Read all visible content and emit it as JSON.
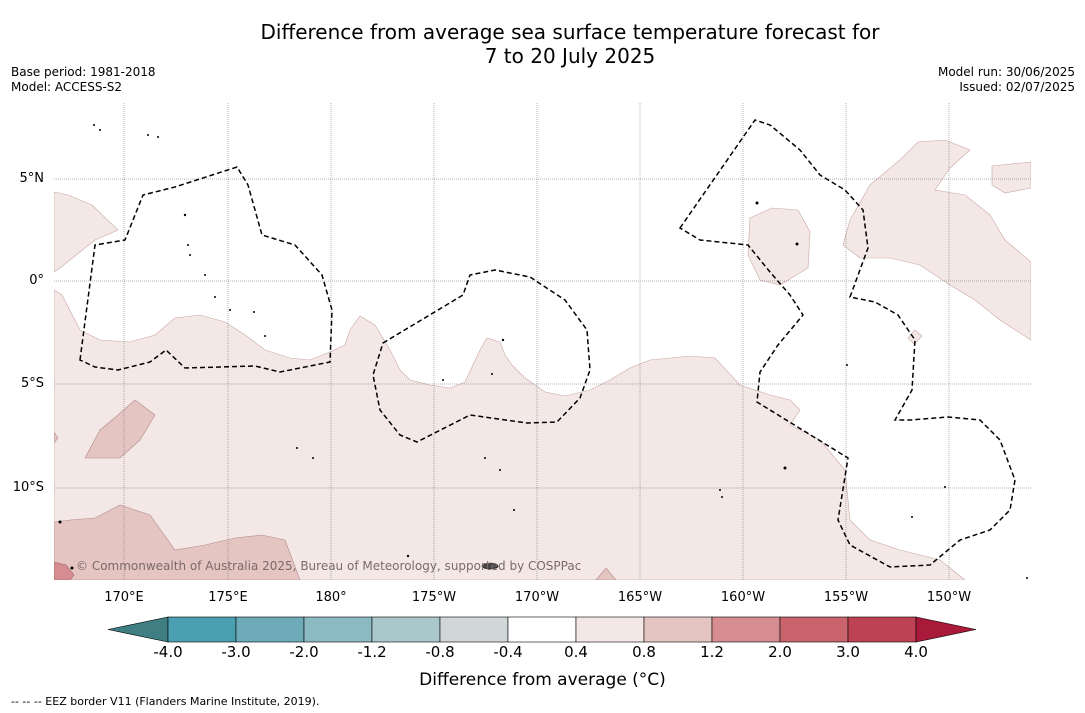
{
  "title": {
    "line1": "Difference from average sea surface temperature forecast for",
    "line2": "7 to 20 July 2025"
  },
  "meta": {
    "base_period": "Base period: 1981-2018",
    "model": "Model: ACCESS-S2",
    "model_run": "Model run: 30/06/2025",
    "issued": "Issued: 02/07/2025"
  },
  "map": {
    "lat_labels": [
      "5°N",
      "0°",
      "5°S",
      "10°S"
    ],
    "lon_labels": [
      "170°E",
      "175°E",
      "180°",
      "175°W",
      "170°W",
      "165°W",
      "160°W",
      "155°W",
      "150°W"
    ],
    "copyright": "© Commonwealth of Australia 2025, Bureau of Meteorology, supported by COSPPac",
    "colors": {
      "anom_0p4_0p8": "#f4e8e7",
      "anom_0p8_1p2": "#e5c5c2",
      "anom_1p2_2p0": "#d68d92",
      "eez_border": "#000000",
      "grid": "#666666"
    }
  },
  "colorbar": {
    "tick_labels": [
      "-4.0",
      "-3.0",
      "-2.0",
      "-1.2",
      "-0.8",
      "-0.4",
      "0.4",
      "0.8",
      "1.2",
      "2.0",
      "3.0",
      "4.0"
    ],
    "colors": [
      "#4a9fb0",
      "#6eabb9",
      "#8cbac3",
      "#aac8cc",
      "#d1d7d9",
      "#ffffff",
      "#f4e8e7",
      "#e5c5c2",
      "#d68d92",
      "#c9646d",
      "#bd4354"
    ],
    "under_color": "#3f7f83",
    "over_color": "#a91a3a",
    "label": "Difference from average (°C)"
  },
  "footer": "--  --  -- EEZ border V11 (Flanders Marine Institute, 2019)."
}
